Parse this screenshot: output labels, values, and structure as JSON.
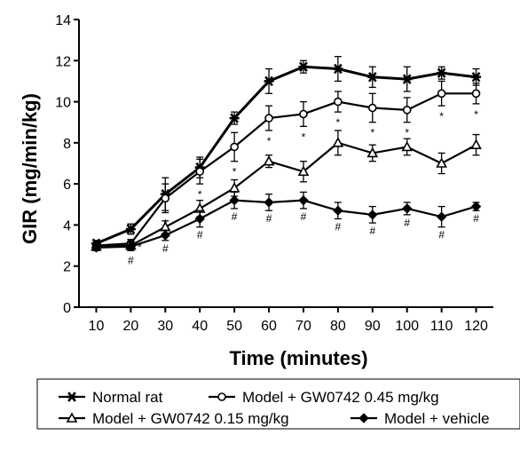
{
  "chart_data": {
    "type": "line",
    "xlabel": "Time (minutes)",
    "ylabel": "GIR (mg/min/kg)",
    "x": [
      10,
      20,
      30,
      40,
      50,
      60,
      70,
      80,
      90,
      100,
      110,
      120
    ],
    "xlim": [
      5,
      125
    ],
    "ylim": [
      0,
      14
    ],
    "yticks": [
      0,
      2,
      4,
      6,
      8,
      10,
      12,
      14
    ],
    "grid": false,
    "legend_position": "bottom",
    "series": [
      {
        "name": "Normal rat",
        "marker": "asterisk",
        "color": "#000000",
        "values": [
          3.1,
          3.8,
          5.5,
          6.8,
          9.2,
          11.0,
          11.7,
          11.6,
          11.2,
          11.1,
          11.4,
          11.2
        ],
        "errors": [
          0.15,
          0.25,
          0.8,
          0.5,
          0.3,
          0.6,
          0.3,
          0.6,
          0.5,
          0.6,
          0.3,
          0.4
        ],
        "annotations": [
          "",
          "",
          "",
          "",
          "",
          "",
          "",
          "",
          "",
          "",
          "",
          ""
        ]
      },
      {
        "name": "Model + GW0742 0.45 mg/kg",
        "marker": "circle",
        "color": "#000000",
        "values": [
          3.0,
          3.1,
          5.3,
          6.6,
          7.8,
          9.2,
          9.4,
          10.0,
          9.7,
          9.6,
          10.4,
          10.4
        ],
        "errors": [
          0.15,
          0.2,
          0.7,
          0.6,
          0.7,
          0.6,
          0.6,
          0.5,
          0.7,
          0.6,
          0.6,
          0.5
        ],
        "annotations": [
          "",
          "*",
          "*",
          "*",
          "*",
          "*",
          "*",
          "*",
          "*",
          "*",
          "*",
          "*"
        ]
      },
      {
        "name": "Model + GW0742 0.15 mg/kg",
        "marker": "triangle",
        "color": "#000000",
        "values": [
          2.95,
          3.0,
          3.9,
          4.8,
          5.8,
          7.1,
          6.6,
          8.0,
          7.5,
          7.8,
          7.0,
          7.9
        ],
        "errors": [
          0.15,
          0.2,
          0.3,
          0.4,
          0.4,
          0.3,
          0.5,
          0.6,
          0.4,
          0.4,
          0.5,
          0.5
        ],
        "annotations": [
          "",
          "",
          "",
          "",
          "",
          "",
          "",
          "",
          "",
          "",
          "",
          ""
        ]
      },
      {
        "name": "Model + vehicle",
        "marker": "diamond",
        "color": "#000000",
        "values": [
          2.9,
          2.95,
          3.5,
          4.3,
          5.2,
          5.1,
          5.2,
          4.7,
          4.5,
          4.8,
          4.4,
          4.9
        ],
        "errors": [
          0.15,
          0.2,
          0.25,
          0.4,
          0.4,
          0.4,
          0.4,
          0.4,
          0.4,
          0.3,
          0.5,
          0.2
        ],
        "annotations": [
          "",
          "#",
          "#",
          "#",
          "#",
          "#",
          "#",
          "#",
          "#",
          "#",
          "#",
          "#"
        ]
      }
    ]
  }
}
